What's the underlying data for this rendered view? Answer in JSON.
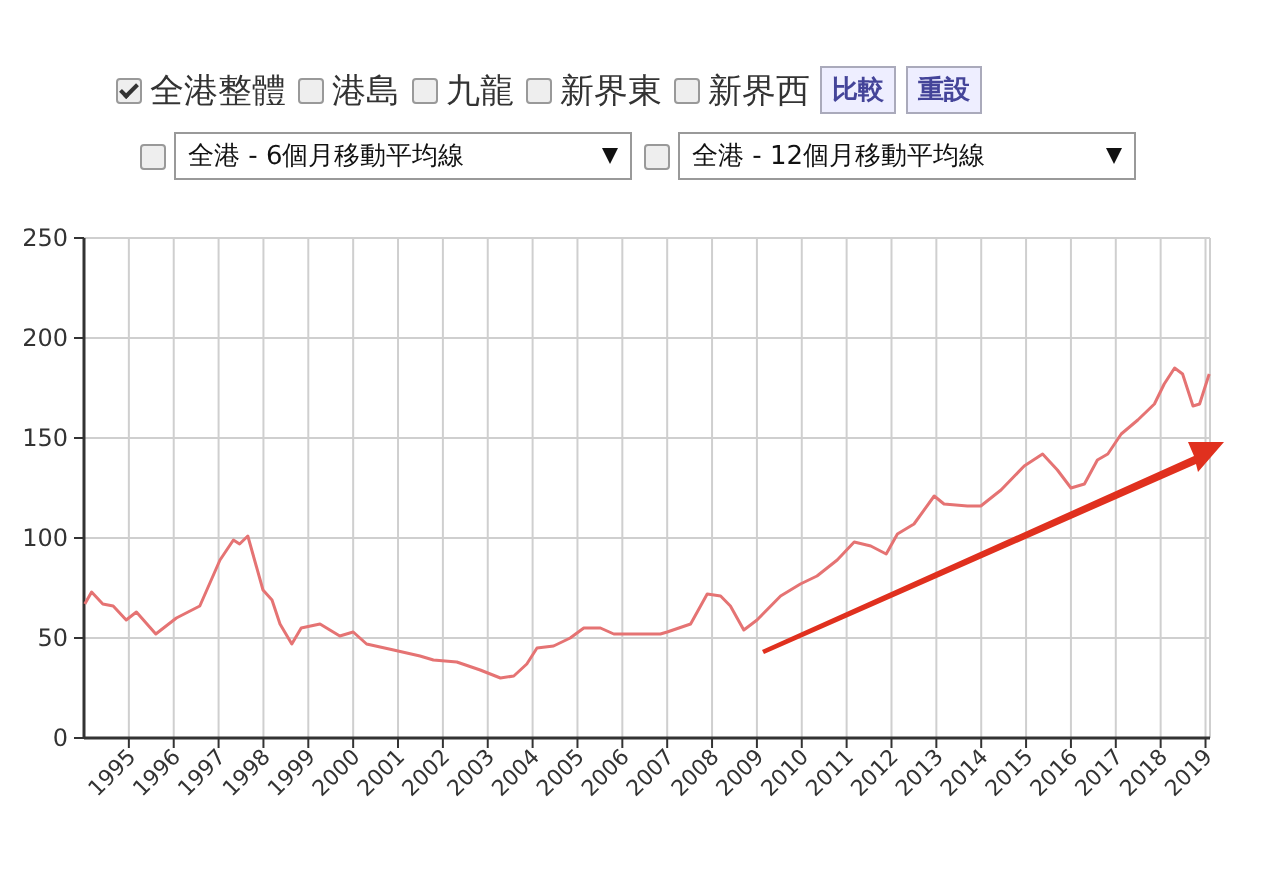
{
  "chart_data": {
    "type": "line",
    "annotations": [
      "全港整體",
      "港島",
      "九龍",
      "新界東",
      "新界西",
      "比較",
      "重設",
      "全港 - 6個月移動平均線",
      "全港 - 12個月移動平均線"
    ],
    "xlim": [
      1994,
      2019.1
    ],
    "xticks": [
      1995,
      1996,
      1997,
      1998,
      1999,
      2000,
      2001,
      2002,
      2003,
      2004,
      2005,
      2006,
      2007,
      2008,
      2009,
      2010,
      2011,
      2012,
      2013,
      2014,
      2015,
      2016,
      2017,
      2018,
      2019
    ],
    "ylim": [
      0,
      250
    ],
    "yticks": [
      0,
      50,
      100,
      150,
      200,
      250
    ],
    "grid": true,
    "marker": "none",
    "line_style": "solid",
    "series": [
      {
        "color": "#e57373",
        "x": [
          1994.02,
          1994.17,
          1994.42,
          1994.65,
          1994.94,
          1995.17,
          1995.6,
          1996.06,
          1996.58,
          1997.03,
          1997.33,
          1997.47,
          1997.65,
          1997.99,
          1998.19,
          1998.37,
          1998.63,
          1998.84,
          1999.26,
          1999.7,
          2000.0,
          2000.3,
          2000.9,
          2001.49,
          2001.79,
          2002.31,
          2002.83,
          2003.28,
          2003.58,
          2003.87,
          2004.1,
          2004.47,
          2004.84,
          2005.14,
          2005.51,
          2005.81,
          2006.25,
          2006.85,
          2007.0,
          2007.52,
          2007.89,
          2008.19,
          2008.41,
          2008.71,
          2009.0,
          2009.53,
          2009.97,
          2010.34,
          2010.79,
          2011.17,
          2011.54,
          2011.88,
          2012.13,
          2012.5,
          2012.95,
          2013.17,
          2013.69,
          2013.99,
          2014.44,
          2014.96,
          2015.37,
          2015.7,
          2016.0,
          2016.3,
          2016.59,
          2016.82,
          2017.12,
          2017.49,
          2017.86,
          2018.08,
          2018.31,
          2018.49,
          2018.72,
          2018.87,
          2019.08
        ],
        "values": [
          67,
          73,
          67,
          66,
          59,
          63,
          52,
          60,
          66,
          89,
          99,
          97,
          101,
          74,
          69,
          57,
          47,
          55,
          57,
          51,
          53,
          47,
          44,
          41,
          39,
          38,
          34,
          30,
          31,
          37,
          45,
          46,
          50,
          55,
          55,
          52,
          52,
          52,
          53,
          57,
          72,
          71,
          66,
          54,
          59,
          71,
          77,
          81,
          89,
          98,
          96,
          92,
          102,
          107,
          121,
          117,
          116,
          116,
          124,
          136,
          142,
          134,
          125,
          127,
          139,
          142,
          152,
          159,
          167,
          177,
          185,
          182,
          166,
          167,
          182
        ]
      }
    ]
  }
}
